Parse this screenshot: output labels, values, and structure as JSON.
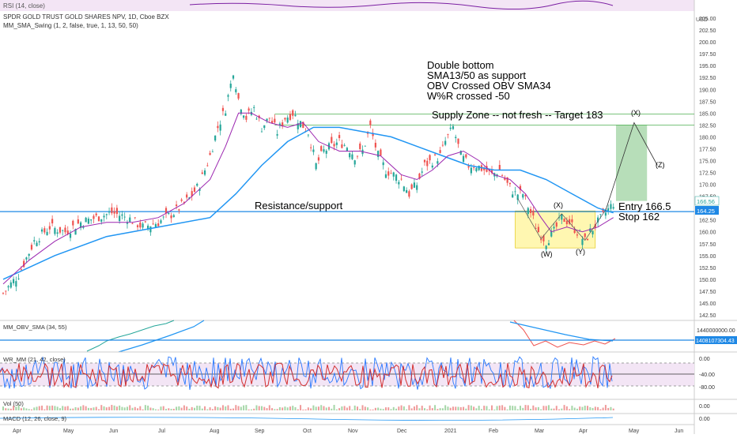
{
  "header": {
    "rsi_label": "RSI (14, close)",
    "symbol_line": "SPDR GOLD TRUST GOLD SHARES NPV, 1D, Cboe BZX",
    "indicator_line": "MM_SMA_Swing (1, 2, false, true, 1, 13, 50, 50)"
  },
  "annotations": {
    "notes": [
      "Double bottom",
      "SMA13/50 as support",
      "OBV Crossed OBV SMA34",
      "W%R crossed -50"
    ],
    "supply_zone": "Supply Zone -- not fresh -- Target 183",
    "resistance": "Resistance/support",
    "entry": "Entry 166.5",
    "stop": "Stop 162",
    "wave_labels": {
      "w": "(W)",
      "x1": "(X)",
      "y": "(Y)",
      "x2": "(X)",
      "z": "(Z)"
    }
  },
  "price_badges": {
    "last": "166.56",
    "level": "164.25"
  },
  "panels": {
    "obv": {
      "label": "MM_OBV_SMA (34, 55)",
      "tick": "1440000000.00",
      "badge": "1408107304.43"
    },
    "wr": {
      "label": "WR_MM (21, 42, close)",
      "ticks": [
        "0.00",
        "-40.00",
        "-80.00"
      ]
    },
    "vol": {
      "label": "Vol (50)",
      "tick": "0.00"
    },
    "macd": {
      "label": "MACD (12, 26, close, 9)",
      "tick": "0.00"
    }
  },
  "colors": {
    "up": "#26a69a",
    "down": "#ef5350",
    "sma13": "#9c27b0",
    "sma50": "#2196f3",
    "level_line": "#1e88e5",
    "zone_line": "#4caf50",
    "rect_yellow": "#fff59d",
    "rect_green": "#a5d6a7"
  },
  "chart_data": {
    "type": "candlestick",
    "x_ticks": [
      "Apr",
      "May",
      "Jun",
      "Jul",
      "Aug",
      "Sep",
      "Oct",
      "Nov",
      "Dec",
      "2021",
      "Feb",
      "Mar",
      "Apr",
      "May",
      "Jun"
    ],
    "y_ticks": [
      142.5,
      145,
      147.5,
      150,
      152.5,
      155,
      157.5,
      160,
      162.5,
      165,
      167.5,
      170,
      172.5,
      175,
      177.5,
      180,
      182.5,
      185,
      187.5,
      190,
      192.5,
      195,
      197.5,
      200,
      202.5,
      205
    ],
    "y_unit": "USD",
    "ylim": [
      141.5,
      206.5
    ],
    "series": [
      {
        "name": "price",
        "points": [
          [
            0,
            147
          ],
          [
            6,
            151
          ],
          [
            12,
            158
          ],
          [
            18,
            161
          ],
          [
            24,
            160
          ],
          [
            30,
            162
          ],
          [
            36,
            163
          ],
          [
            42,
            164
          ],
          [
            48,
            163
          ],
          [
            54,
            161
          ],
          [
            60,
            162
          ],
          [
            66,
            164
          ],
          [
            72,
            167
          ],
          [
            76,
            170
          ],
          [
            80,
            176
          ],
          [
            83,
            182
          ],
          [
            86,
            186
          ],
          [
            88,
            191
          ],
          [
            89,
            194
          ],
          [
            91,
            188
          ],
          [
            94,
            184
          ],
          [
            97,
            186
          ],
          [
            100,
            182
          ],
          [
            103,
            184
          ],
          [
            106,
            181
          ],
          [
            109,
            184
          ],
          [
            112,
            185
          ],
          [
            115,
            183
          ],
          [
            118,
            181
          ],
          [
            121,
            174
          ],
          [
            124,
            177
          ],
          [
            127,
            178
          ],
          [
            130,
            179
          ],
          [
            133,
            178
          ],
          [
            136,
            176
          ],
          [
            139,
            177
          ],
          [
            142,
            182
          ],
          [
            145,
            176
          ],
          [
            148,
            173
          ],
          [
            151,
            172
          ],
          [
            154,
            171
          ],
          [
            157,
            168
          ],
          [
            160,
            170
          ],
          [
            163,
            174
          ],
          [
            166,
            175
          ],
          [
            169,
            176
          ],
          [
            171,
            179
          ],
          [
            174,
            182
          ],
          [
            177,
            176
          ],
          [
            180,
            174
          ],
          [
            183,
            174
          ],
          [
            186,
            173
          ],
          [
            189,
            172
          ],
          [
            192,
            173
          ],
          [
            195,
            170
          ],
          [
            198,
            168
          ],
          [
            201,
            168
          ],
          [
            204,
            164
          ],
          [
            207,
            160
          ],
          [
            210,
            158
          ],
          [
            213,
            160
          ],
          [
            216,
            163
          ],
          [
            219,
            162
          ],
          [
            222,
            160
          ],
          [
            225,
            158
          ],
          [
            227,
            160
          ],
          [
            230,
            162
          ],
          [
            233,
            164
          ],
          [
            236,
            166
          ]
        ]
      },
      {
        "name": "SMA13",
        "points": [
          [
            0,
            149
          ],
          [
            10,
            154
          ],
          [
            20,
            158
          ],
          [
            30,
            161
          ],
          [
            40,
            162
          ],
          [
            50,
            162
          ],
          [
            60,
            163
          ],
          [
            70,
            166
          ],
          [
            80,
            171
          ],
          [
            86,
            178
          ],
          [
            91,
            185
          ],
          [
            96,
            185
          ],
          [
            103,
            183
          ],
          [
            110,
            182
          ],
          [
            116,
            183
          ],
          [
            122,
            179
          ],
          [
            130,
            177
          ],
          [
            138,
            177
          ],
          [
            146,
            176
          ],
          [
            154,
            172
          ],
          [
            160,
            171
          ],
          [
            166,
            173
          ],
          [
            172,
            176
          ],
          [
            178,
            177
          ],
          [
            184,
            175
          ],
          [
            190,
            172
          ],
          [
            196,
            171
          ],
          [
            202,
            168
          ],
          [
            208,
            163
          ],
          [
            212,
            160
          ],
          [
            218,
            161
          ],
          [
            224,
            160
          ],
          [
            230,
            161
          ],
          [
            236,
            163
          ]
        ]
      },
      {
        "name": "SMA50",
        "points": [
          [
            0,
            150
          ],
          [
            20,
            155
          ],
          [
            40,
            159
          ],
          [
            60,
            161
          ],
          [
            80,
            163
          ],
          [
            90,
            168
          ],
          [
            100,
            174
          ],
          [
            110,
            179
          ],
          [
            120,
            182
          ],
          [
            130,
            182
          ],
          [
            140,
            181
          ],
          [
            150,
            180
          ],
          [
            160,
            178
          ],
          [
            170,
            176
          ],
          [
            180,
            174
          ],
          [
            190,
            173
          ],
          [
            200,
            173
          ],
          [
            210,
            171
          ],
          [
            220,
            168
          ],
          [
            230,
            165
          ],
          [
            236,
            164
          ]
        ]
      }
    ],
    "levels": {
      "resistance_support": 164.25,
      "supply_zone_low": 182.5,
      "supply_zone_high": 184.8,
      "entry": 166.5,
      "stop": 162,
      "target": 183
    },
    "projection": [
      [
        233,
        164.5
      ],
      [
        244,
        183
      ],
      [
        253,
        174
      ]
    ]
  }
}
